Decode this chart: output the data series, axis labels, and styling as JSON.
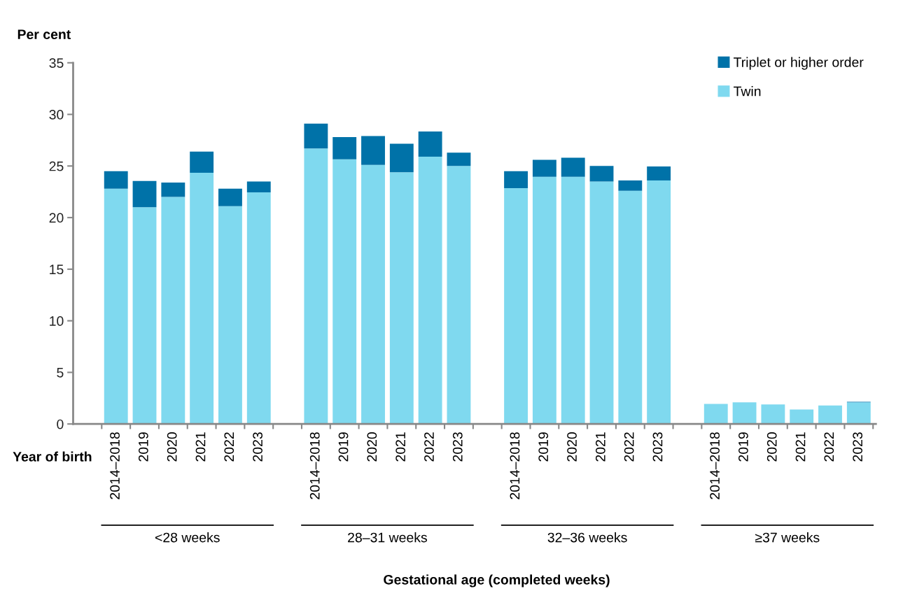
{
  "chart_data": {
    "type": "bar",
    "stacked": true,
    "ylabel": "Per cent",
    "categories": [
      "2014–2018",
      "2019",
      "2020",
      "2021",
      "2022",
      "2023",
      null,
      "2014–2018",
      "2019",
      "2020",
      "2021",
      "2022",
      "2023",
      null,
      "2014–2018",
      "2019",
      "2020",
      "2021",
      "2022",
      "2023",
      null,
      "2014–2018",
      "2019",
      "2020",
      "2021",
      "2022",
      "2023"
    ],
    "series": [
      {
        "name": "Twin",
        "color": "#7fd9ef",
        "values": [
          22.8,
          21.0,
          22.0,
          24.35,
          21.1,
          22.45,
          null,
          26.7,
          25.65,
          25.1,
          24.4,
          25.9,
          25.0,
          null,
          22.85,
          23.95,
          23.95,
          23.5,
          22.6,
          23.6,
          null,
          1.95,
          2.1,
          1.9,
          1.4,
          1.8,
          2.1
        ]
      },
      {
        "name": "Triplet or higher order",
        "color": "#0072a8",
        "values": [
          1.7,
          2.55,
          1.4,
          2.05,
          1.7,
          1.05,
          null,
          2.4,
          2.15,
          2.8,
          2.75,
          2.45,
          1.3,
          null,
          1.65,
          1.65,
          1.85,
          1.5,
          1.0,
          1.35,
          null,
          0,
          0,
          0,
          0,
          0,
          0.05
        ]
      }
    ],
    "ylim": [
      0,
      35
    ],
    "yticks": [
      0,
      5,
      10,
      15,
      20,
      25,
      30,
      35
    ],
    "grid": false,
    "legend": "top right",
    "annotations": [
      "Year of birth",
      "<28 weeks",
      "28–31 weeks",
      "32–36 weeks",
      "≥37 weeks",
      "Gestational age (completed weeks)"
    ]
  }
}
